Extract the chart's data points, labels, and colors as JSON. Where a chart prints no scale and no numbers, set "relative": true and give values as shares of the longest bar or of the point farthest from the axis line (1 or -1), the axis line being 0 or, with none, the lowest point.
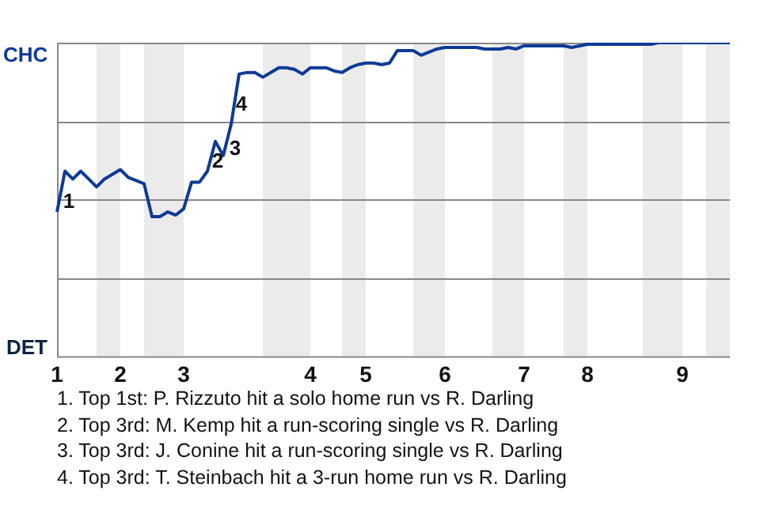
{
  "chart_data": {
    "type": "line",
    "relative": true,
    "categories": [
      "1",
      null,
      null,
      null,
      null,
      null,
      null,
      null,
      "2",
      null,
      null,
      null,
      null,
      null,
      null,
      null,
      "3",
      null,
      null,
      null,
      null,
      null,
      null,
      null,
      null,
      null,
      null,
      null,
      null,
      null,
      null,
      null,
      "4",
      null,
      null,
      null,
      null,
      null,
      null,
      "5",
      null,
      null,
      null,
      null,
      null,
      null,
      null,
      null,
      null,
      "6",
      null,
      null,
      null,
      null,
      null,
      null,
      null,
      null,
      null,
      "7",
      null,
      null,
      null,
      null,
      null,
      null,
      null,
      "8",
      null,
      null,
      null,
      null,
      null,
      null,
      null,
      null,
      null,
      null,
      null,
      "9",
      null,
      null,
      null,
      null,
      null,
      null
    ],
    "series": [
      {
        "color": "#0e3a96",
        "values": [
          0.46,
          0.59,
          0.565,
          0.59,
          0.565,
          0.54,
          0.565,
          0.58,
          0.595,
          0.57,
          0.56,
          0.55,
          0.445,
          0.445,
          0.46,
          0.45,
          0.47,
          0.555,
          0.555,
          0.59,
          0.685,
          0.64,
          0.74,
          0.9,
          0.905,
          0.905,
          0.89,
          0.905,
          0.92,
          0.92,
          0.915,
          0.9,
          0.92,
          0.92,
          0.92,
          0.91,
          0.905,
          0.92,
          0.93,
          0.935,
          0.935,
          0.93,
          0.935,
          0.975,
          0.975,
          0.975,
          0.96,
          0.97,
          0.98,
          0.985,
          0.985,
          0.985,
          0.985,
          0.985,
          0.98,
          0.98,
          0.98,
          0.985,
          0.98,
          0.99,
          0.99,
          0.99,
          0.99,
          0.99,
          0.99,
          0.985,
          0.99,
          0.995,
          0.995,
          0.995,
          0.995,
          0.995,
          0.995,
          0.995,
          0.995,
          0.995,
          1,
          1,
          1,
          1,
          1,
          1,
          1,
          1,
          1,
          1
        ]
      }
    ],
    "grid": "y",
    "legend": false,
    "marker": "none",
    "line_style": "solid",
    "annotations": [
      "CHC",
      "DET",
      "1",
      "2",
      "3",
      "4",
      "1. Top 1st: P. Rizzuto hit a solo home run vs R. Darling",
      "2. Top 3rd: M. Kemp hit a run-scoring single vs R. Darling",
      "3. Top 3rd: J. Conine hit a run-scoring single vs R. Darling",
      "4. Top 3rd: T. Steinbach hit a 3-run home run vs R. Darling"
    ]
  }
}
